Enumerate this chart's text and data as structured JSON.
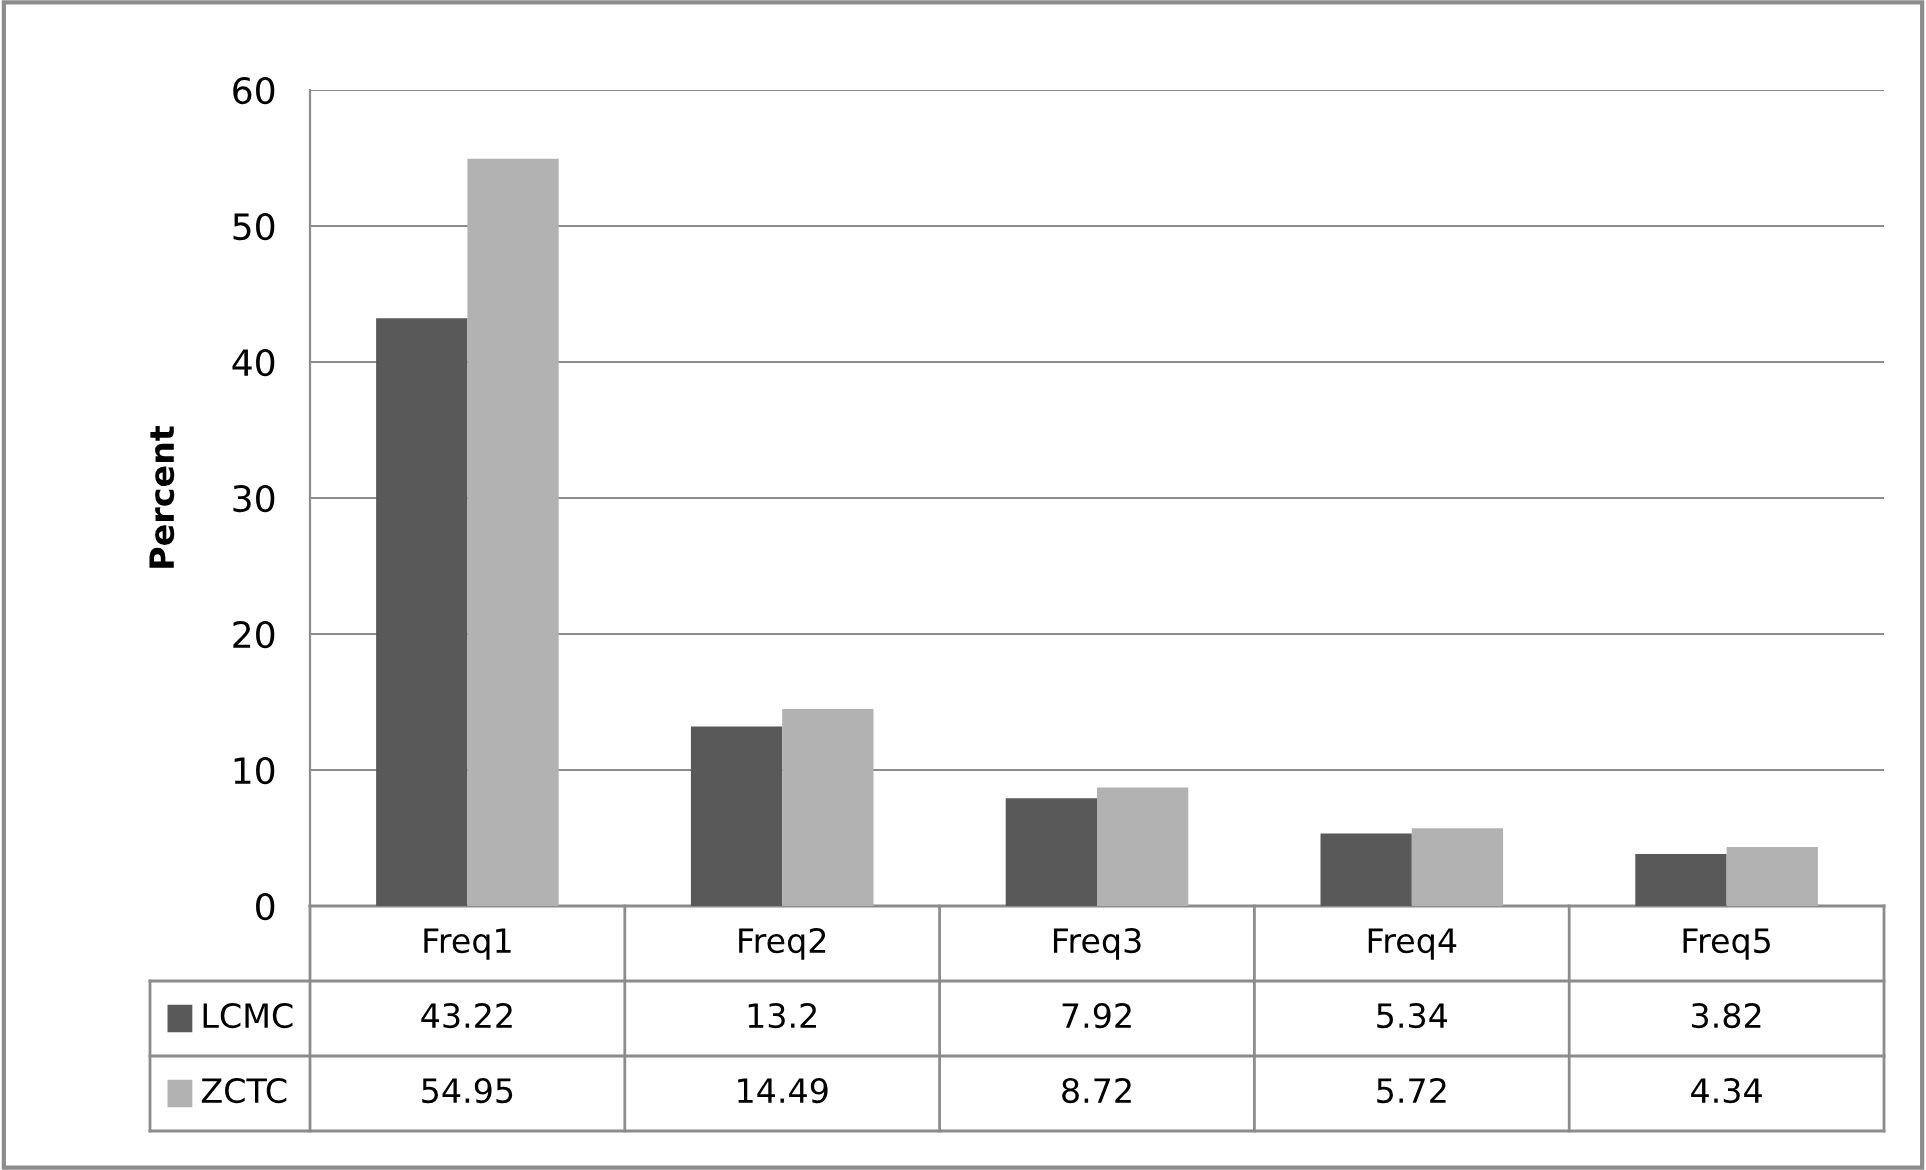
{
  "chart_data": {
    "type": "bar",
    "ylabel": "Percent",
    "categories": [
      "Freq1",
      "Freq2",
      "Freq3",
      "Freq4",
      "Freq5"
    ],
    "series": [
      {
        "name": "LCMC",
        "color": "#595959",
        "values": [
          43.22,
          13.2,
          7.92,
          5.34,
          3.82
        ]
      },
      {
        "name": "ZCTC",
        "color": "#b2b2b2",
        "values": [
          54.95,
          14.49,
          8.72,
          5.72,
          4.34
        ]
      }
    ],
    "ylim": [
      0,
      60
    ],
    "yticks": [
      0,
      10,
      20,
      30,
      40,
      50,
      60
    ],
    "grid": "y",
    "legend": "bottom",
    "data_labels": true
  }
}
